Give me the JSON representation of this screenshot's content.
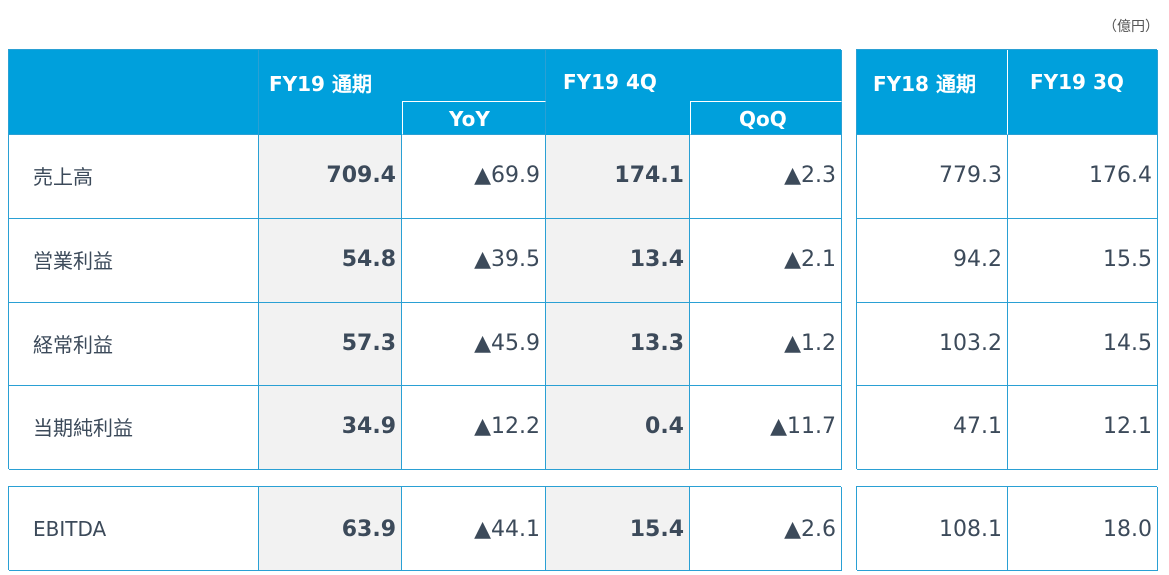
{
  "unit_label": "（億円）",
  "header": {
    "fy19_full": "FY19 通期",
    "yoy": "YoY",
    "fy19_4q": "FY19 4Q",
    "qoq": "QoQ",
    "fy18_full": "FY18 通期",
    "fy19_3q": "FY19 3Q"
  },
  "rows": [
    {
      "label": "売上高",
      "fy19": "709.4",
      "yoy": "▲69.9",
      "q4": "174.1",
      "qoq": "▲2.3",
      "fy18": "779.3",
      "q3": "176.4"
    },
    {
      "label": "営業利益",
      "fy19": "54.8",
      "yoy": "▲39.5",
      "q4": "13.4",
      "qoq": "▲2.1",
      "fy18": "94.2",
      "q3": "15.5"
    },
    {
      "label": "経常利益",
      "fy19": "57.3",
      "yoy": "▲45.9",
      "q4": "13.3",
      "qoq": "▲1.2",
      "fy18": "103.2",
      "q3": "14.5"
    },
    {
      "label": "当期純利益",
      "fy19": "34.9",
      "yoy": "▲12.2",
      "q4": "0.4",
      "qoq": "▲11.7",
      "fy18": "47.1",
      "q3": "12.1"
    }
  ],
  "ebitda": {
    "label": "EBITDA",
    "fy19": "63.9",
    "yoy": "▲44.1",
    "q4": "15.4",
    "qoq": "▲2.6",
    "fy18": "108.1",
    "q3": "18.0"
  }
}
